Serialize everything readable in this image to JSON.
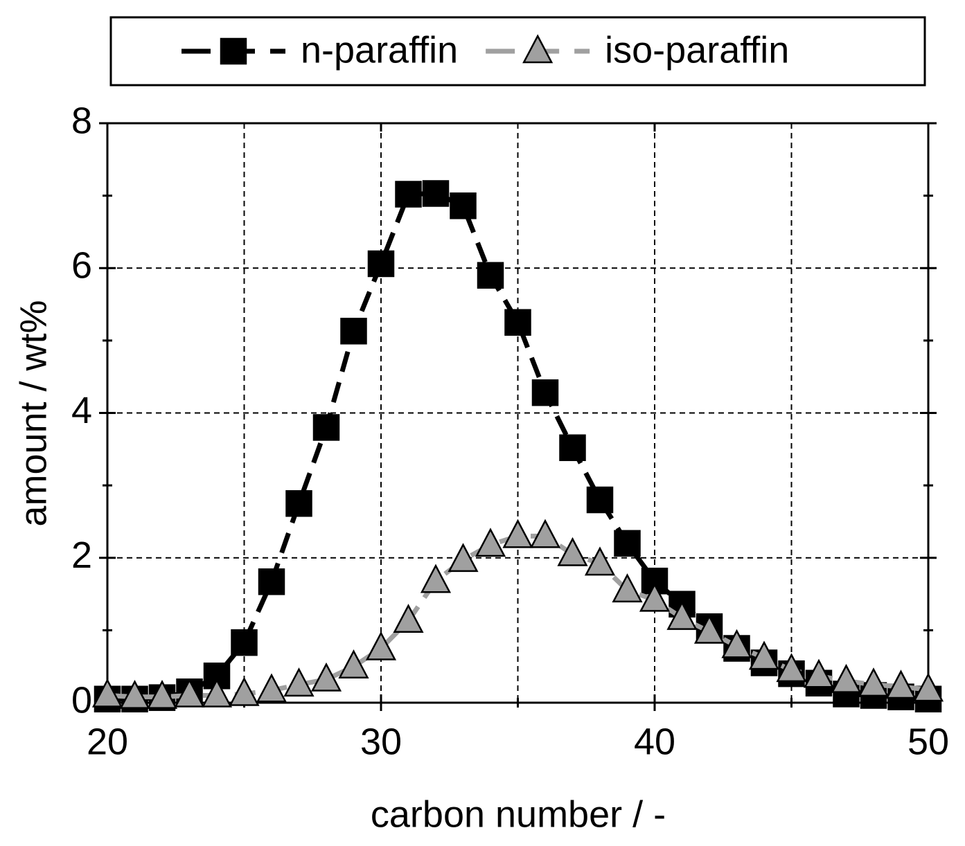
{
  "chart_data": {
    "type": "line",
    "x": [
      20,
      21,
      22,
      23,
      24,
      25,
      26,
      27,
      28,
      29,
      30,
      31,
      32,
      33,
      34,
      35,
      36,
      37,
      38,
      39,
      40,
      41,
      42,
      43,
      44,
      45,
      46,
      47,
      48,
      49,
      50
    ],
    "series": [
      {
        "name": "n-paraffin",
        "color": "#000000",
        "marker": "square",
        "values": [
          0.05,
          0.05,
          0.07,
          0.15,
          0.37,
          0.83,
          1.67,
          2.75,
          3.8,
          5.13,
          6.06,
          7.02,
          7.03,
          6.86,
          5.9,
          5.25,
          4.28,
          3.52,
          2.8,
          2.2,
          1.68,
          1.36,
          1.05,
          0.75,
          0.55,
          0.4,
          0.27,
          0.12,
          0.1,
          0.08,
          0.05
        ]
      },
      {
        "name": "iso-paraffin",
        "color": "#a0a0a0",
        "marker": "triangle",
        "values": [
          0.1,
          0.08,
          0.08,
          0.1,
          0.1,
          0.12,
          0.17,
          0.25,
          0.32,
          0.5,
          0.75,
          1.13,
          1.68,
          1.97,
          2.18,
          2.3,
          2.3,
          2.05,
          1.92,
          1.55,
          1.42,
          1.17,
          0.98,
          0.78,
          0.62,
          0.45,
          0.37,
          0.3,
          0.25,
          0.22,
          0.18
        ]
      }
    ],
    "x_label": "carbon number / -",
    "y_label": "amount / wt%",
    "xlim": [
      20,
      50
    ],
    "xticks": [
      20,
      30,
      40,
      50
    ],
    "xticks_minor": [
      25,
      35,
      45
    ],
    "ylim": [
      0,
      8
    ],
    "yticks": [
      0,
      2,
      4,
      6,
      8
    ],
    "yticks_minor": [
      1,
      3,
      5,
      7
    ],
    "grid": true,
    "legend": "top"
  }
}
